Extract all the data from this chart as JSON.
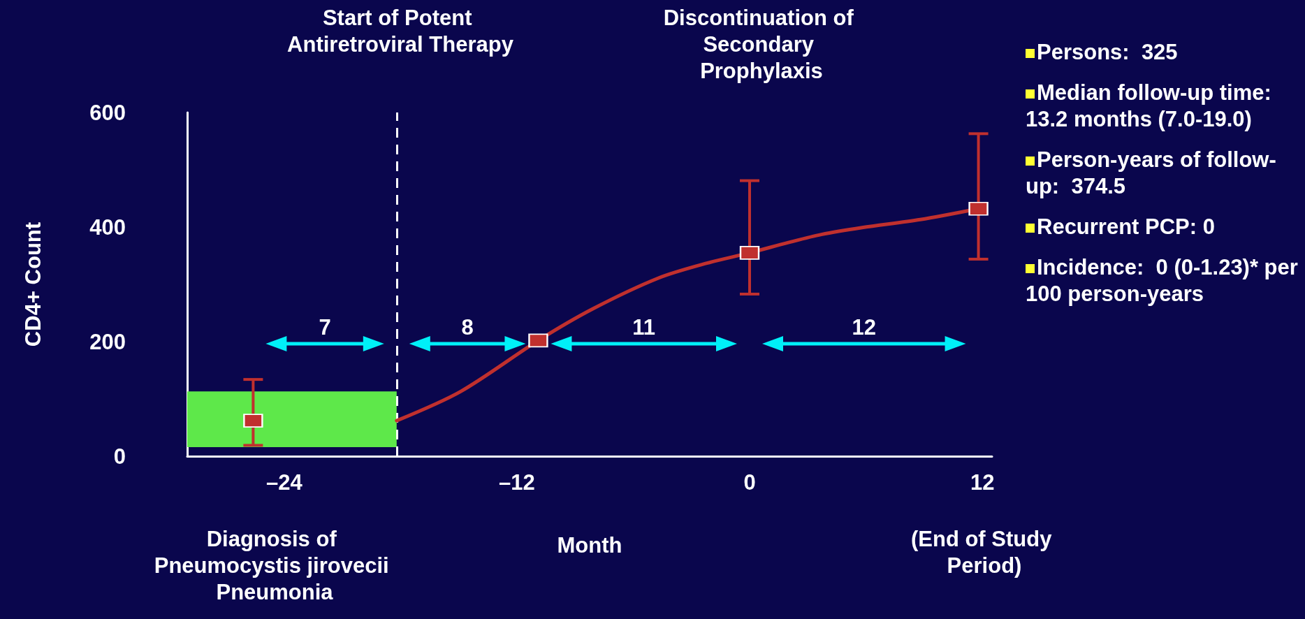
{
  "chart_data": {
    "type": "line",
    "ylabel": "CD4+ Count",
    "xlabel": "Month",
    "xlim": [
      -29,
      12.5
    ],
    "xticks": [
      {
        "value": -24,
        "label": "–24"
      },
      {
        "value": -12,
        "label": "–12"
      },
      0,
      12
    ],
    "ylim": [
      0,
      600
    ],
    "yticks": [
      0,
      200,
      400,
      600
    ],
    "series": [
      {
        "color": "#c0302e",
        "marker": "none",
        "x": [
          -18.2,
          -14.9,
          -10.9,
          -8.1,
          -4.7,
          -2.2,
          0,
          2,
          3.7,
          5.8,
          8.8,
          11.8
        ],
        "values": [
          62,
          113,
          202,
          257,
          311,
          337,
          355,
          373,
          387,
          399,
          413,
          432
        ]
      },
      {
        "type": "scatter",
        "color": "#c0302e",
        "marker": "square",
        "x": [
          -25.6,
          -10.9,
          0,
          11.8
        ],
        "values": [
          62,
          202,
          355,
          432
        ],
        "errors": [
          [
            19,
            134
          ],
          null,
          [
            283,
            481
          ],
          [
            344,
            563
          ]
        ]
      }
    ],
    "ref_lines": [
      {
        "axis": "x",
        "value": -18.2,
        "color": "#ffffff",
        "line_style": "dashed"
      }
    ],
    "bands": [
      {
        "axis": "y",
        "from": 16,
        "to": 113,
        "color": "#5ee84a"
      }
    ],
    "annotations": [
      "Start of Potent Antiretroviral Therapy",
      "Discontinuation of Secondary Prophylaxis",
      "Diagnosis of Pneumocystis jirovecii Pneumonia",
      "(End of Study Period)",
      "7",
      "8",
      "11",
      "12",
      "Persons:  325",
      "Median follow-up time:  13.2 months (7.0-19.0)",
      "Person-years of follow-up:  374.5",
      "Recurrent PCP: 0",
      "Incidence:  0 (0-1.23)* per 100 person-years"
    ],
    "grid": false
  }
}
